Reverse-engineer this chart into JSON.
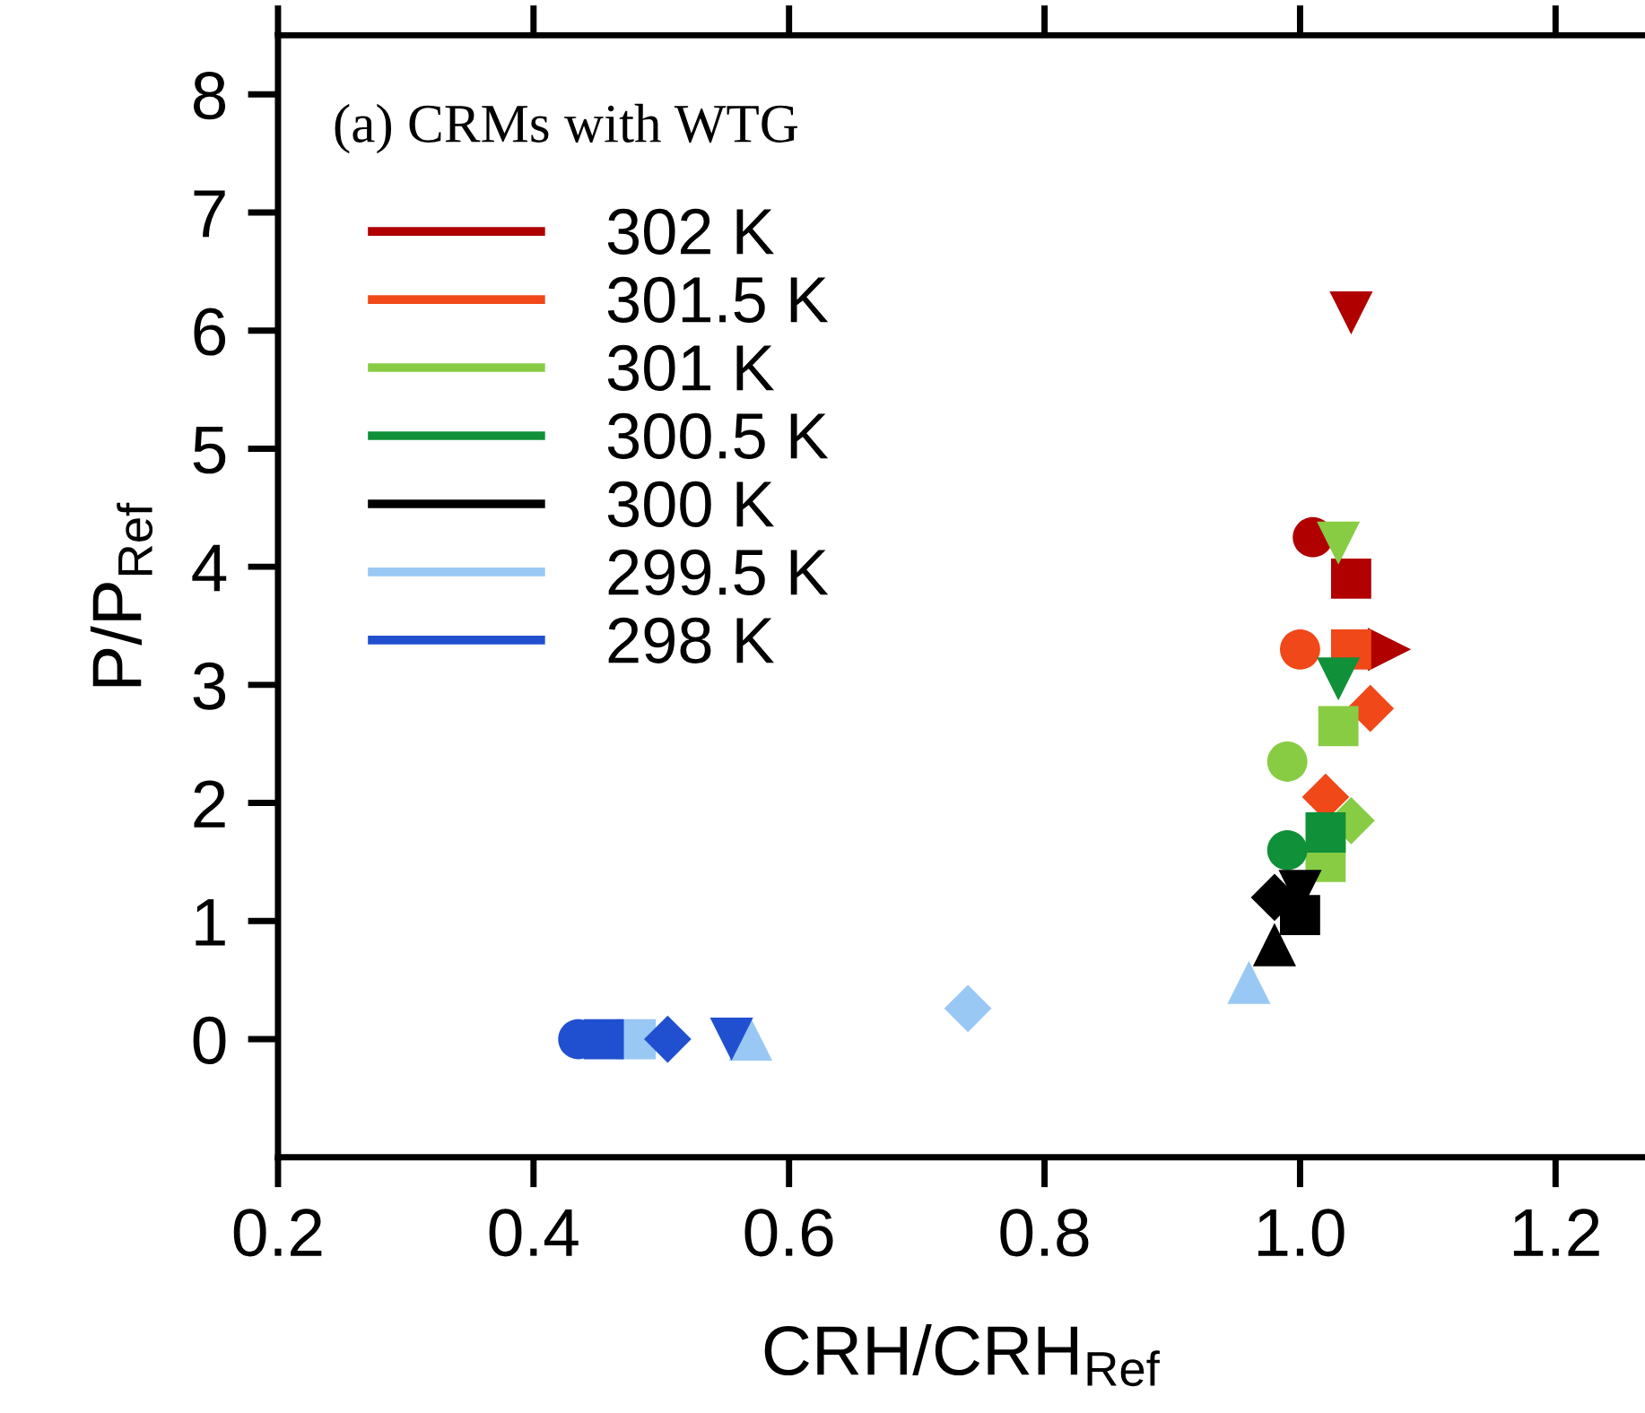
{
  "chart_data": {
    "type": "scatter",
    "xlabel": "CRH/CRH$_{Ref}$",
    "ylabel": "P/P$_{Ref}$",
    "annotations": [
      "(a) CRMs with WTG"
    ],
    "xlim": [
      0.2,
      1.27
    ],
    "xticks": [
      {
        "value": 0.2,
        "label": "0.2"
      },
      {
        "value": 0.4,
        "label": "0.4"
      },
      {
        "value": 0.6,
        "label": "0.6"
      },
      {
        "value": 0.8,
        "label": "0.8"
      },
      {
        "value": 1.0,
        "label": "1.0"
      },
      {
        "value": 1.2,
        "label": "1.2"
      }
    ],
    "ylim": [
      -1,
      8.5
    ],
    "yticks": [
      0,
      1,
      2,
      3,
      4,
      5,
      6,
      7,
      8
    ],
    "legend": "top left",
    "line_style": "solid",
    "grid": false,
    "series": [
      {
        "name": "302 K",
        "color": "#b00000",
        "marker": "triangle_down",
        "x": [
          1.04
        ],
        "values": [
          6.15
        ]
      },
      {
        "color": "#b00000",
        "marker": "circle",
        "x": [
          1.01
        ],
        "values": [
          4.25
        ]
      },
      {
        "color": "#b00000",
        "marker": "square",
        "x": [
          1.04
        ],
        "values": [
          3.9
        ]
      },
      {
        "color": "#b00000",
        "marker": "triangle_right",
        "x": [
          1.07
        ],
        "values": [
          3.3
        ]
      },
      {
        "name": "301.5 K",
        "color": "#f04818",
        "marker": "circle",
        "x": [
          1.0
        ],
        "values": [
          3.3
        ]
      },
      {
        "color": "#f04818",
        "marker": "square",
        "x": [
          1.04
        ],
        "values": [
          3.3
        ]
      },
      {
        "color": "#f04818",
        "marker": "diamond",
        "x": [
          1.055,
          1.02
        ],
        "values": [
          2.8,
          2.05
        ]
      },
      {
        "name": "301 K",
        "color": "#88cc44",
        "marker": "triangle_down",
        "x": [
          1.03
        ],
        "values": [
          4.2
        ]
      },
      {
        "color": "#88cc44",
        "marker": "circle",
        "x": [
          0.99
        ],
        "values": [
          2.35
        ]
      },
      {
        "color": "#88cc44",
        "marker": "square",
        "x": [
          1.03,
          1.02
        ],
        "values": [
          2.65,
          1.5
        ]
      },
      {
        "color": "#88cc44",
        "marker": "diamond",
        "x": [
          1.04
        ],
        "values": [
          1.85
        ]
      },
      {
        "name": "300.5 K",
        "color": "#109038",
        "marker": "triangle_down",
        "x": [
          1.03
        ],
        "values": [
          3.05
        ]
      },
      {
        "color": "#109038",
        "marker": "circle",
        "x": [
          0.99
        ],
        "values": [
          1.6
        ]
      },
      {
        "color": "#109038",
        "marker": "square",
        "x": [
          1.02
        ],
        "values": [
          1.75
        ]
      },
      {
        "name": "300 K",
        "color": "#000000",
        "marker": "diamond",
        "x": [
          0.98
        ],
        "values": [
          1.2
        ]
      },
      {
        "color": "#000000",
        "marker": "square",
        "x": [
          1.0
        ],
        "values": [
          1.05
        ]
      },
      {
        "color": "#000000",
        "marker": "triangle",
        "x": [
          0.98
        ],
        "values": [
          0.8
        ]
      },
      {
        "color": "#000000",
        "marker": "triangle_down",
        "x": [
          1.0
        ],
        "values": [
          1.25
        ]
      },
      {
        "name": "299.5 K",
        "color": "#99c8f4",
        "marker": "triangle",
        "x": [
          0.96,
          0.57
        ],
        "values": [
          0.48,
          0
        ]
      },
      {
        "color": "#99c8f4",
        "marker": "diamond",
        "x": [
          0.74
        ],
        "values": [
          0.26
        ]
      },
      {
        "color": "#99c8f4",
        "marker": "square",
        "x": [
          0.48
        ],
        "values": [
          0
        ]
      },
      {
        "name": "298 K",
        "color": "#2050d0",
        "marker": "circle",
        "x": [
          0.435
        ],
        "values": [
          0
        ]
      },
      {
        "color": "#2050d0",
        "marker": "square",
        "x": [
          0.455
        ],
        "values": [
          0
        ]
      },
      {
        "color": "#2050d0",
        "marker": "diamond",
        "x": [
          0.505
        ],
        "values": [
          0
        ]
      },
      {
        "color": "#2050d0",
        "marker": "triangle_down",
        "x": [
          0.555
        ],
        "values": [
          0
        ]
      }
    ]
  }
}
